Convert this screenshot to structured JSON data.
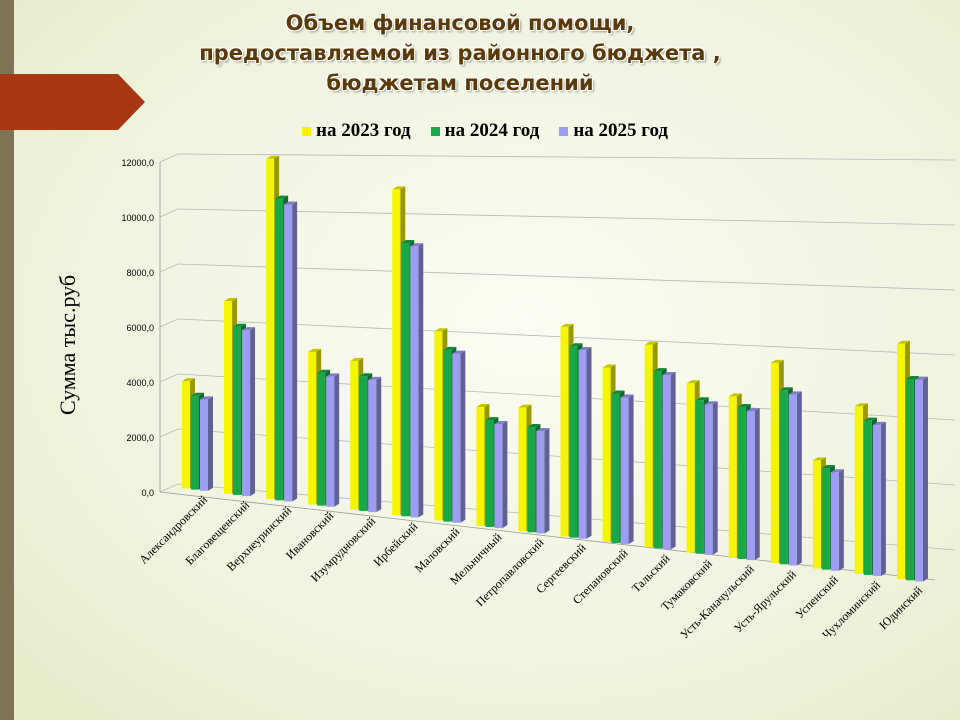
{
  "title_lines": [
    "Объем финансовой помощи,",
    "предоставляемой из районного бюджета ,",
    "бюджетам поселений"
  ],
  "colors": {
    "series_2023": "#f5f500",
    "series_2024": "#18a848",
    "series_2025": "#9d9df2",
    "banner": "#a83812",
    "strip": "#7d7355"
  },
  "chart_data": {
    "type": "bar",
    "ylabel": "Сумма  тыс.руб",
    "ylim": [
      0,
      12000
    ],
    "yticks": [
      "0,0",
      "2000,0",
      "4000,0",
      "6000,0",
      "8000,0",
      "10000,0",
      "12000,0"
    ],
    "grid": true,
    "legend_position": "top",
    "categories": [
      "Александровский",
      "Благовещенский",
      "Верхнеуринский",
      "Ивановский",
      "Изумрудновский",
      "Ирбейский",
      "Маловский",
      "Мельничный",
      "Петропавловский",
      "Сергеевский",
      "Степановский",
      "Тальский",
      "Тумаковский",
      "Усть-Каначульский",
      "Усть-Ярульский",
      "Успенский",
      "Чухломинский",
      "Юдинский"
    ],
    "series": [
      {
        "name": "на 2023 год",
        "values": [
          3900,
          6900,
          12000,
          5300,
          5100,
          11000,
          6300,
          3900,
          4000,
          6700,
          5500,
          6300,
          5200,
          4900,
          6000,
          3200,
          4900,
          6800
        ]
      },
      {
        "name": "на 2024 год",
        "values": [
          3400,
          6000,
          10600,
          4600,
          4600,
          9200,
          5700,
          3500,
          3400,
          6100,
          4700,
          5500,
          4700,
          4600,
          5200,
          3000,
          4500,
          5800
        ]
      },
      {
        "name": "на 2025 год",
        "values": [
          3300,
          5900,
          10400,
          4500,
          4500,
          9100,
          5600,
          3400,
          3300,
          6000,
          4600,
          5400,
          4600,
          4500,
          5100,
          2900,
          4400,
          5800
        ]
      }
    ]
  }
}
